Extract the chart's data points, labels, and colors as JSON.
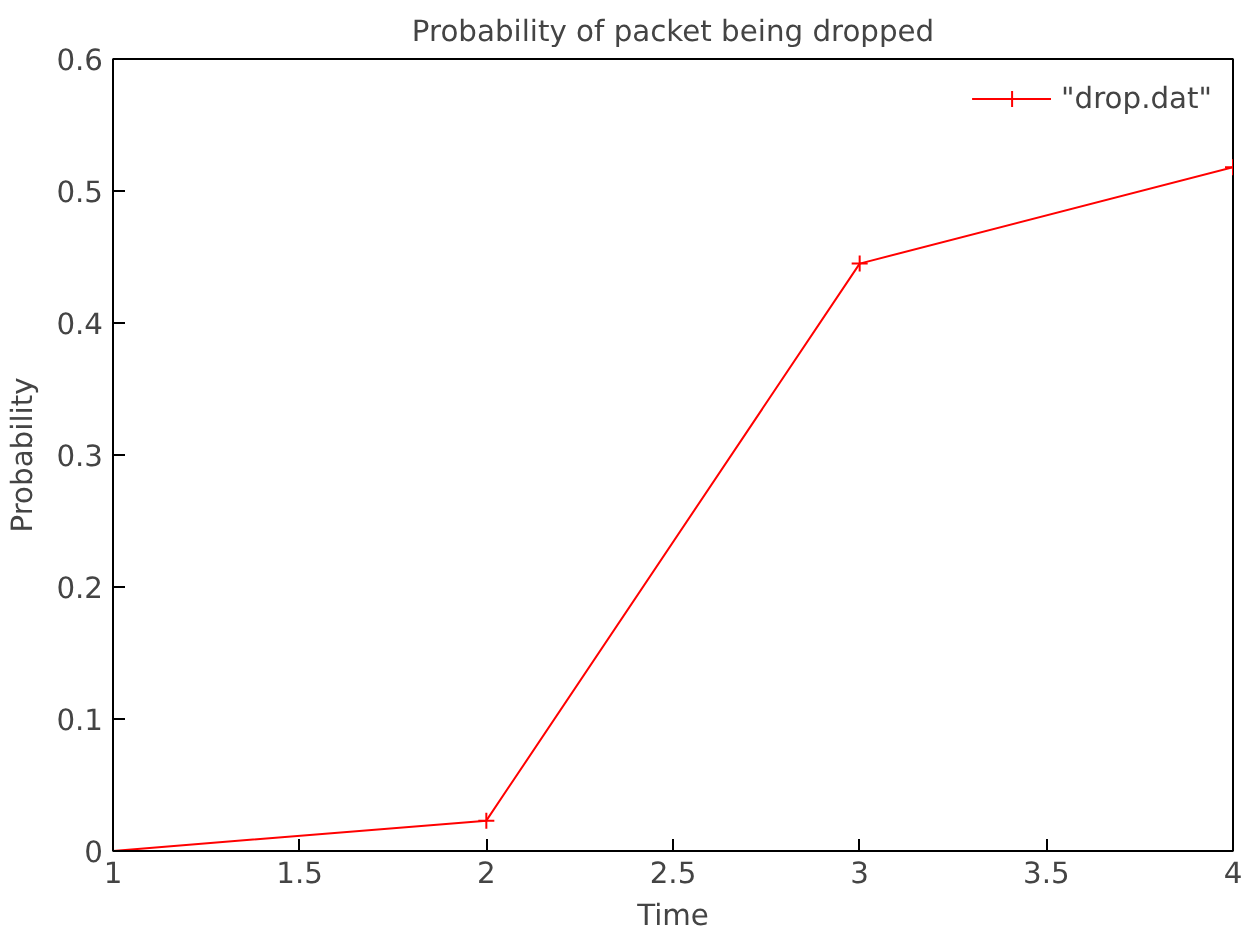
{
  "chart_data": {
    "type": "line",
    "title": "Probability of packet being dropped",
    "xlabel": "Time",
    "ylabel": "Probability",
    "x": [
      1,
      2,
      3,
      4
    ],
    "series": [
      {
        "name": "\"drop.dat\"",
        "color": "#ff0000",
        "values": [
          0,
          0.023,
          0.445,
          0.518
        ]
      }
    ],
    "xlim": [
      1,
      4
    ],
    "xticks": [
      1,
      1.5,
      2,
      2.5,
      3,
      3.5,
      4
    ],
    "ylim": [
      0,
      0.6
    ],
    "yticks": [
      0,
      0.1,
      0.2,
      0.3,
      0.4,
      0.5,
      0.6
    ],
    "grid": false,
    "legend": "top right",
    "marker": "cross",
    "line_style": "solid"
  }
}
